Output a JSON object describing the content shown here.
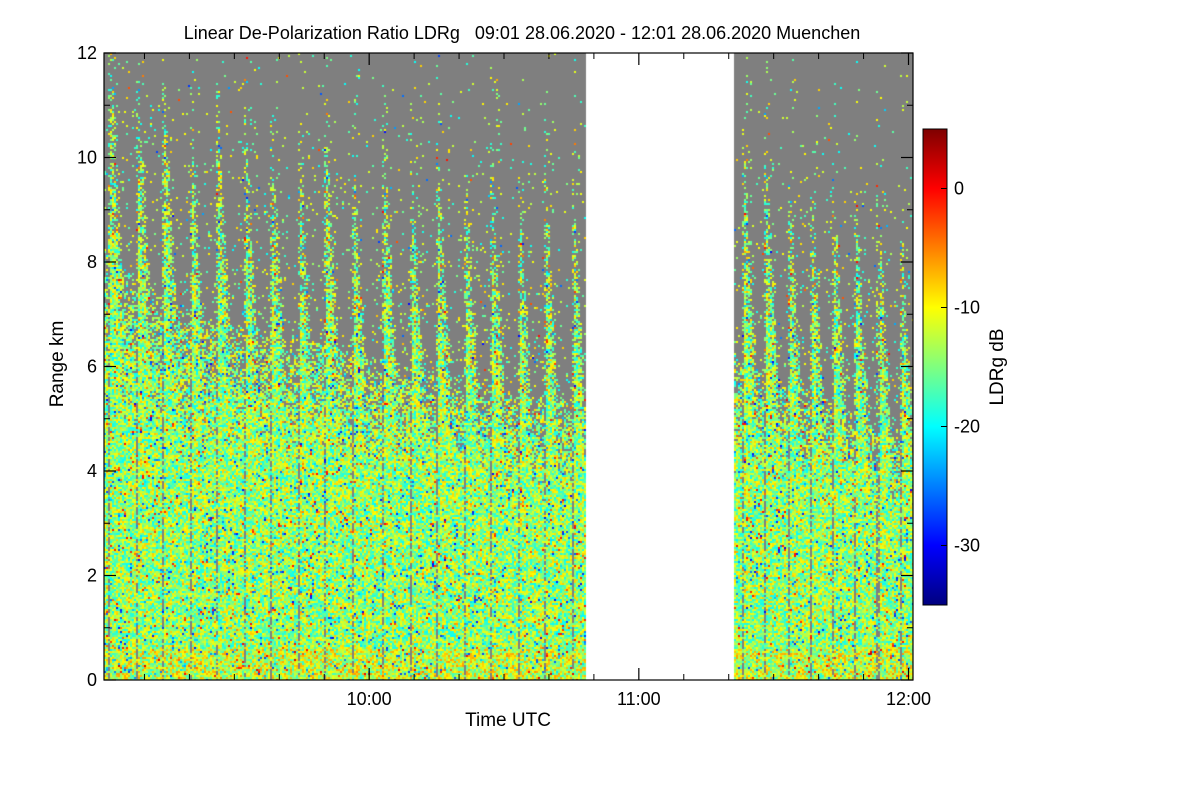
{
  "chart_data": {
    "type": "heatmap",
    "title": "Linear De-Polarization Ratio LDRg   09:01 28.06.2020 - 12:01 28.06.2020 Muenchen",
    "xlabel": "Time UTC",
    "ylabel": "Range km",
    "xlim_minutes_utc": [
      541,
      721
    ],
    "ylim_km": [
      0,
      12
    ],
    "x_ticks": [
      {
        "label": "10:00",
        "minute": 600
      },
      {
        "label": "11:00",
        "minute": 660
      },
      {
        "label": "12:00",
        "minute": 720
      }
    ],
    "x_minor_tick_minutes": [
      550,
      560,
      570,
      580,
      590,
      610,
      620,
      630,
      640,
      650,
      670,
      680,
      690,
      700,
      710
    ],
    "y_ticks": [
      {
        "label": "0",
        "value": 0
      },
      {
        "label": "2",
        "value": 2
      },
      {
        "label": "4",
        "value": 4
      },
      {
        "label": "6",
        "value": 6
      },
      {
        "label": "8",
        "value": 8
      },
      {
        "label": "10",
        "value": 10
      },
      {
        "label": "12",
        "value": 12
      }
    ],
    "data_gap_minutes": [
      648,
      681
    ],
    "no_signal_color": "#7f7f7f",
    "colorbar": {
      "label": "LDRg dB",
      "range_db": [
        -35,
        5
      ],
      "ticks": [
        {
          "label": "0",
          "value": 0
        },
        {
          "label": "-10",
          "value": -10
        },
        {
          "label": "-20",
          "value": -20
        },
        {
          "label": "-30",
          "value": -30
        }
      ],
      "colormap": [
        "#00007f",
        "#0000ff",
        "#007fff",
        "#00ffff",
        "#7fff7f",
        "#ffff00",
        "#ff7f00",
        "#ff0000",
        "#7f0000"
      ]
    },
    "signal_top_profile_km": [
      {
        "minute": 541,
        "top_km": 8.3
      },
      {
        "minute": 550,
        "top_km": 7.6
      },
      {
        "minute": 560,
        "top_km": 7.0
      },
      {
        "minute": 570,
        "top_km": 6.8
      },
      {
        "minute": 580,
        "top_km": 6.5
      },
      {
        "minute": 590,
        "top_km": 6.5
      },
      {
        "minute": 600,
        "top_km": 6.2
      },
      {
        "minute": 610,
        "top_km": 6.0
      },
      {
        "minute": 620,
        "top_km": 5.8
      },
      {
        "minute": 630,
        "top_km": 5.6
      },
      {
        "minute": 640,
        "top_km": 5.4
      },
      {
        "minute": 648,
        "top_km": 5.3
      },
      {
        "minute": 681,
        "top_km": 6.3
      },
      {
        "minute": 690,
        "top_km": 5.8
      },
      {
        "minute": 700,
        "top_km": 5.5
      },
      {
        "minute": 710,
        "top_km": 5.1
      },
      {
        "minute": 721,
        "top_km": 4.6
      }
    ],
    "bright_streak_minutes": [
      542,
      548,
      554,
      560,
      566,
      572,
      578,
      584,
      590,
      596,
      603,
      609,
      615,
      621,
      627,
      633,
      639,
      645,
      683,
      688,
      693,
      698,
      703,
      708,
      713,
      718
    ]
  }
}
